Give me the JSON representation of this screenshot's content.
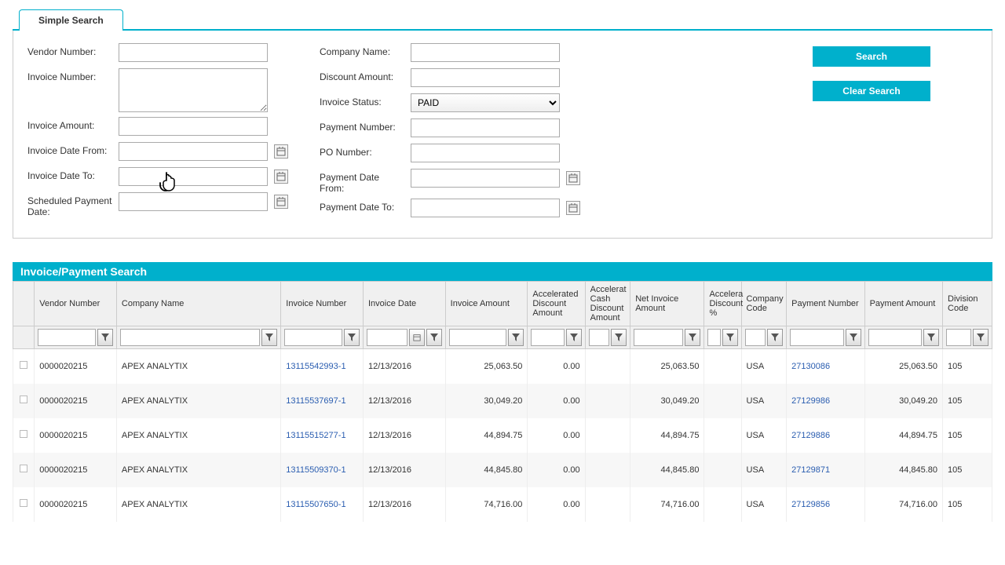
{
  "tab": {
    "label": "Simple Search"
  },
  "form": {
    "left": {
      "vendor_number": {
        "label": "Vendor Number:"
      },
      "invoice_number": {
        "label": "Invoice Number:"
      },
      "invoice_amount": {
        "label": "Invoice Amount:"
      },
      "invoice_date_from": {
        "label": "Invoice Date From:"
      },
      "invoice_date_to": {
        "label": "Invoice Date To:"
      },
      "scheduled_payment_date": {
        "label": "Scheduled Payment Date:"
      }
    },
    "right": {
      "company_name": {
        "label": "Company Name:"
      },
      "discount_amount": {
        "label": "Discount Amount:"
      },
      "invoice_status": {
        "label": "Invoice Status:",
        "value": "PAID"
      },
      "payment_number": {
        "label": "Payment Number:"
      },
      "po_number": {
        "label": "PO Number:"
      },
      "payment_date_from": {
        "label": "Payment Date From:"
      },
      "payment_date_to": {
        "label": "Payment Date To:"
      }
    },
    "buttons": {
      "search": "Search",
      "clear": "Clear Search"
    }
  },
  "results": {
    "title": "Invoice/Payment Search",
    "columns": {
      "vendor_number": "Vendor Number",
      "company_name": "Company Name",
      "invoice_number": "Invoice Number",
      "invoice_date": "Invoice Date",
      "invoice_amount": "Invoice Amount",
      "accel_discount_amount": "Accelerated Discount Amount",
      "accel_cash_discount_amount": "Accelerat Cash Discount Amount",
      "net_invoice_amount": "Net Invoice Amount",
      "accel_discount_pct": "Accelera Discount %",
      "company_code": "Company Code",
      "payment_number": "Payment Number",
      "payment_amount": "Payment Amount",
      "division_code": "Division Code"
    },
    "rows": [
      {
        "vendor_number": "0000020215",
        "company_name": "APEX ANALYTIX",
        "invoice_number": "13115542993-1",
        "invoice_date": "12/13/2016",
        "invoice_amount": "25,063.50",
        "accel_discount_amount": "0.00",
        "accel_cash_discount_amount": "",
        "net_invoice_amount": "25,063.50",
        "accel_discount_pct": "",
        "company_code": "USA",
        "payment_number": "27130086",
        "payment_amount": "25,063.50",
        "division_code": "105"
      },
      {
        "vendor_number": "0000020215",
        "company_name": "APEX ANALYTIX",
        "invoice_number": "13115537697-1",
        "invoice_date": "12/13/2016",
        "invoice_amount": "30,049.20",
        "accel_discount_amount": "0.00",
        "accel_cash_discount_amount": "",
        "net_invoice_amount": "30,049.20",
        "accel_discount_pct": "",
        "company_code": "USA",
        "payment_number": "27129986",
        "payment_amount": "30,049.20",
        "division_code": "105"
      },
      {
        "vendor_number": "0000020215",
        "company_name": "APEX ANALYTIX",
        "invoice_number": "13115515277-1",
        "invoice_date": "12/13/2016",
        "invoice_amount": "44,894.75",
        "accel_discount_amount": "0.00",
        "accel_cash_discount_amount": "",
        "net_invoice_amount": "44,894.75",
        "accel_discount_pct": "",
        "company_code": "USA",
        "payment_number": "27129886",
        "payment_amount": "44,894.75",
        "division_code": "105"
      },
      {
        "vendor_number": "0000020215",
        "company_name": "APEX ANALYTIX",
        "invoice_number": "13115509370-1",
        "invoice_date": "12/13/2016",
        "invoice_amount": "44,845.80",
        "accel_discount_amount": "0.00",
        "accel_cash_discount_amount": "",
        "net_invoice_amount": "44,845.80",
        "accel_discount_pct": "",
        "company_code": "USA",
        "payment_number": "27129871",
        "payment_amount": "44,845.80",
        "division_code": "105"
      },
      {
        "vendor_number": "0000020215",
        "company_name": "APEX ANALYTIX",
        "invoice_number": "13115507650-1",
        "invoice_date": "12/13/2016",
        "invoice_amount": "74,716.00",
        "accel_discount_amount": "0.00",
        "accel_cash_discount_amount": "",
        "net_invoice_amount": "74,716.00",
        "accel_discount_pct": "",
        "company_code": "USA",
        "payment_number": "27129856",
        "payment_amount": "74,716.00",
        "division_code": "105"
      }
    ]
  }
}
